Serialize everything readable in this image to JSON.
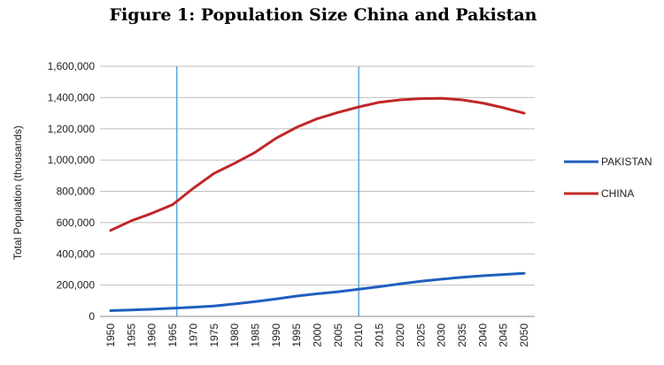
{
  "chart_data": {
    "type": "line",
    "title": "Figure 1: Population Size China and Pakistan",
    "xlabel": "",
    "ylabel": "Total Population (thousands)",
    "x": [
      1950,
      1955,
      1960,
      1965,
      1970,
      1975,
      1980,
      1985,
      1990,
      1995,
      2000,
      2005,
      2010,
      2015,
      2020,
      2025,
      2030,
      2035,
      2040,
      2045,
      2050
    ],
    "ylim": [
      0,
      1600000
    ],
    "yticks": [
      0,
      200000,
      400000,
      600000,
      800000,
      1000000,
      1200000,
      1400000,
      1600000
    ],
    "ytick_labels": [
      "0",
      "200,000",
      "400,000",
      "600,000",
      "800,000",
      "1,000,000",
      "1,200,000",
      "1,400,000",
      "1,600,000"
    ],
    "grid": true,
    "legend_position": "right",
    "vertical_markers": [
      1966,
      2010
    ],
    "series": [
      {
        "name": "PAKISTAN",
        "color": "#1f5fbf",
        "values": [
          37000,
          41000,
          46000,
          52000,
          59000,
          66000,
          80000,
          95000,
          112000,
          130000,
          145000,
          158000,
          174000,
          190000,
          208000,
          225000,
          238000,
          250000,
          260000,
          268000,
          276000
        ]
      },
      {
        "name": "CHINA",
        "color": "#c0282a",
        "values": [
          550000,
          612000,
          660000,
          715000,
          820000,
          915000,
          980000,
          1050000,
          1140000,
          1210000,
          1265000,
          1305000,
          1340000,
          1370000,
          1385000,
          1393000,
          1395000,
          1385000,
          1365000,
          1335000,
          1300000
        ]
      }
    ],
    "marker_color": "#5aa6de"
  }
}
